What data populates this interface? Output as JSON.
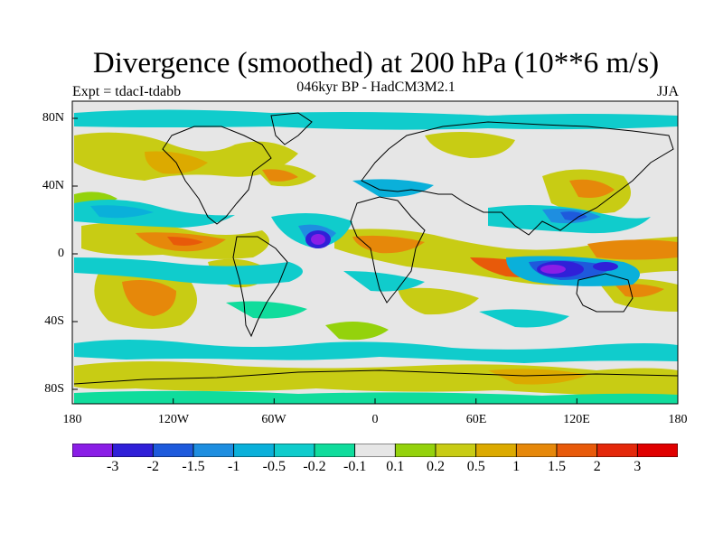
{
  "title": "Divergence (smoothed) at 200 hPa (10**6 m/s)",
  "subtitle": "046kyr BP - HadCM3M2.1",
  "experiment": "Expt = tdacI-tdabb",
  "season": "JJA",
  "lat_labels": [
    "80N",
    "40N",
    "0",
    "40S",
    "80S"
  ],
  "lon_labels": [
    "180",
    "120W",
    "60W",
    "0",
    "60E",
    "120E",
    "180"
  ],
  "colorbar": {
    "labels": [
      "-3",
      "-2",
      "-1.5",
      "-1",
      "-0.5",
      "-0.2",
      "-0.1",
      "0.1",
      "0.2",
      "0.5",
      "1",
      "1.5",
      "2",
      "3"
    ],
    "colors": [
      "#8a1ee6",
      "#3020d8",
      "#1e5adc",
      "#1e8ee0",
      "#0ab0da",
      "#10cccc",
      "#10dc9c",
      "#e6e6e6",
      "#94d20c",
      "#c8cc14",
      "#dcaa00",
      "#e6880a",
      "#e85a0a",
      "#e4280a",
      "#e00000"
    ]
  }
}
